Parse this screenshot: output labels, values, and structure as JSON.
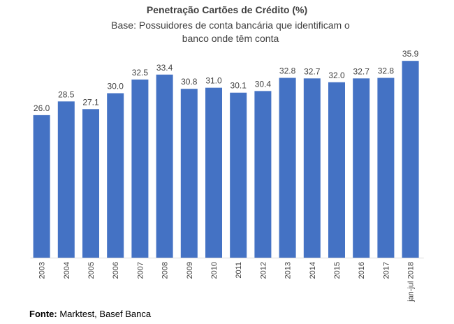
{
  "chart_data": {
    "type": "bar",
    "title": "Penetração Cartões de Crédito (%)",
    "subtitle": "Base: Possuidores de conta bancária que identificam o banco onde têm conta",
    "categories": [
      "2003",
      "2004",
      "2005",
      "2006",
      "2007",
      "2008",
      "2009",
      "2010",
      "2011",
      "2012",
      "2013",
      "2014",
      "2015",
      "2016",
      "2017",
      "jan-jul 2018"
    ],
    "values": [
      26.0,
      28.5,
      27.1,
      30.0,
      32.5,
      33.4,
      30.8,
      31.0,
      30.1,
      30.4,
      32.8,
      32.7,
      32.0,
      32.7,
      32.8,
      35.9
    ],
    "value_labels": [
      "26.0",
      "28.5",
      "27.1",
      "30.0",
      "32.5",
      "33.4",
      "30.8",
      "31.0",
      "30.1",
      "30.4",
      "32.8",
      "32.7",
      "32.0",
      "32.7",
      "32.8",
      "35.9"
    ],
    "ylim": [
      0,
      40
    ],
    "grid": false,
    "bar_color": "#4472C4"
  },
  "source": {
    "label": "Fonte:",
    "text": "Marktest, Basef Banca"
  }
}
